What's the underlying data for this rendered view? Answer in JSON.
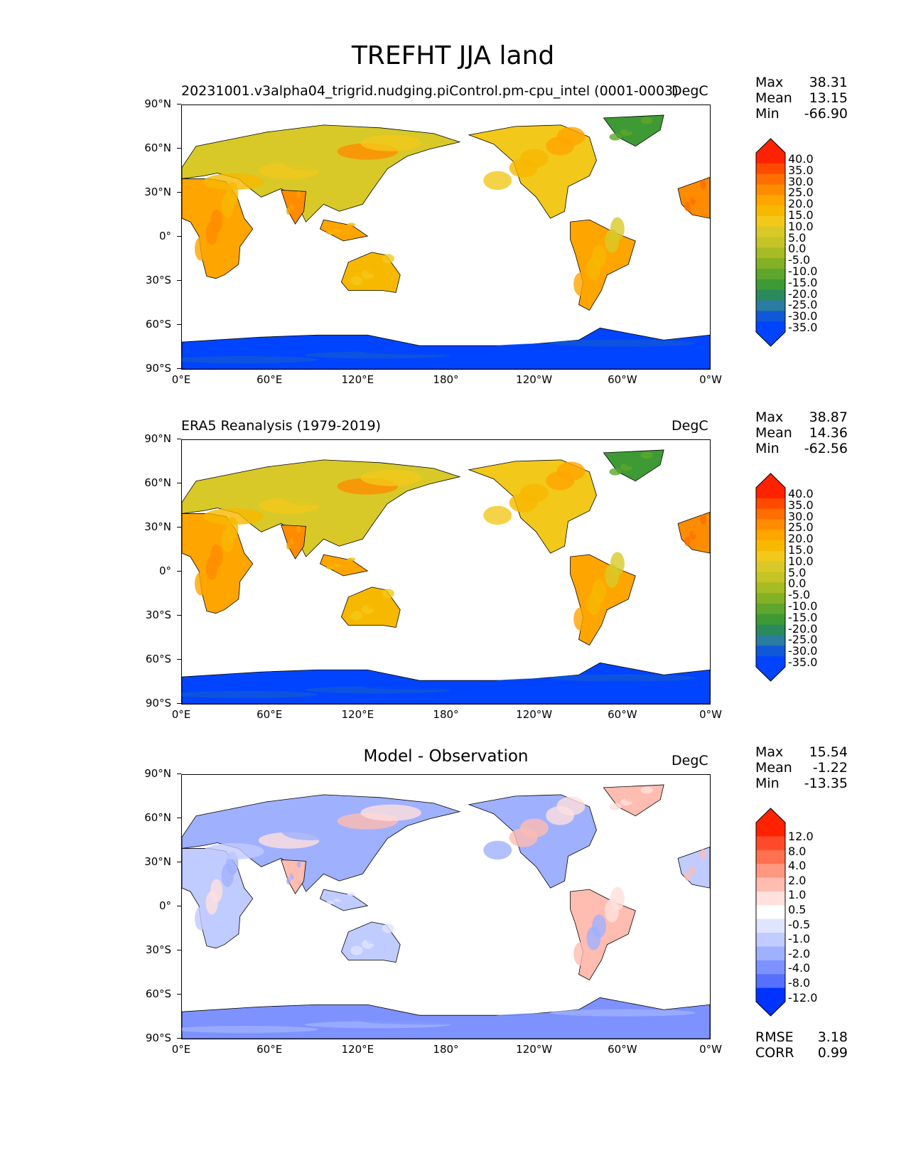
{
  "figure": {
    "title": "TREFHT JJA land"
  },
  "axes": {
    "y_ticks": [
      "90°N",
      "60°N",
      "30°N",
      "0°",
      "30°S",
      "60°S",
      "90°S"
    ],
    "x_ticks": [
      "0°E",
      "60°E",
      "120°E",
      "180°",
      "120°W",
      "60°W",
      "0°W"
    ]
  },
  "panels": [
    {
      "title": "20231001.v3alpha04_trigrid.nudging.piControl.pm-cpu_intel (0001-0003)",
      "units": "DegC",
      "stats": {
        "max_label": "Max",
        "max": "38.31",
        "mean_label": "Mean",
        "mean": "13.15",
        "min_label": "Min",
        "min": "-66.90"
      },
      "colorbar_labels": [
        "40.0",
        "35.0",
        "30.0",
        "25.0",
        "20.0",
        "15.0",
        "10.0",
        "5.0",
        "0.0",
        "-5.0",
        "-10.0",
        "-15.0",
        "-20.0",
        "-25.0",
        "-30.0",
        "-35.0"
      ]
    },
    {
      "title": "ERA5 Reanalysis (1979-2019)",
      "units": "DegC",
      "stats": {
        "max_label": "Max",
        "max": "38.87",
        "mean_label": "Mean",
        "mean": "14.36",
        "min_label": "Min",
        "min": "-62.56"
      },
      "colorbar_labels": [
        "40.0",
        "35.0",
        "30.0",
        "25.0",
        "20.0",
        "15.0",
        "10.0",
        "5.0",
        "0.0",
        "-5.0",
        "-10.0",
        "-15.0",
        "-20.0",
        "-25.0",
        "-30.0",
        "-35.0"
      ]
    },
    {
      "title": "Model - Observation",
      "units": "DegC",
      "stats": {
        "max_label": "Max",
        "max": "15.54",
        "mean_label": "Mean",
        "mean": "-1.22",
        "min_label": "Min",
        "min": "-13.35"
      },
      "colorbar_labels": [
        "12.0",
        "8.0",
        "4.0",
        "2.0",
        "1.0",
        "0.5",
        "-0.5",
        "-1.0",
        "-2.0",
        "-4.0",
        "-8.0",
        "-12.0"
      ],
      "metrics": {
        "rmse_label": "RMSE",
        "rmse": "3.18",
        "corr_label": "CORR",
        "corr": "0.99"
      }
    }
  ],
  "colors": {
    "abs_scale": [
      "#ff2200",
      "#ff4a00",
      "#ff6e00",
      "#ff8c00",
      "#ffa500",
      "#f7b800",
      "#f2c81a",
      "#d8c928",
      "#c4c426",
      "#a6bb24",
      "#84b025",
      "#5ea62c",
      "#3e9a34",
      "#2a8a5c",
      "#2a7ca0",
      "#1058d8",
      "#0044ff"
    ],
    "diff_scale": [
      "#ff2200",
      "#ff4a2a",
      "#ff7050",
      "#ff9880",
      "#ffbcb0",
      "#ffe0dc",
      "#ffffff",
      "#dfe4ff",
      "#c0cbff",
      "#9fb0ff",
      "#7d92ff",
      "#5570ff",
      "#0033ff"
    ],
    "ocean": "#ffffff",
    "antarctica_abs": "#0044ff",
    "antarctica_diff": "#5570ff"
  }
}
